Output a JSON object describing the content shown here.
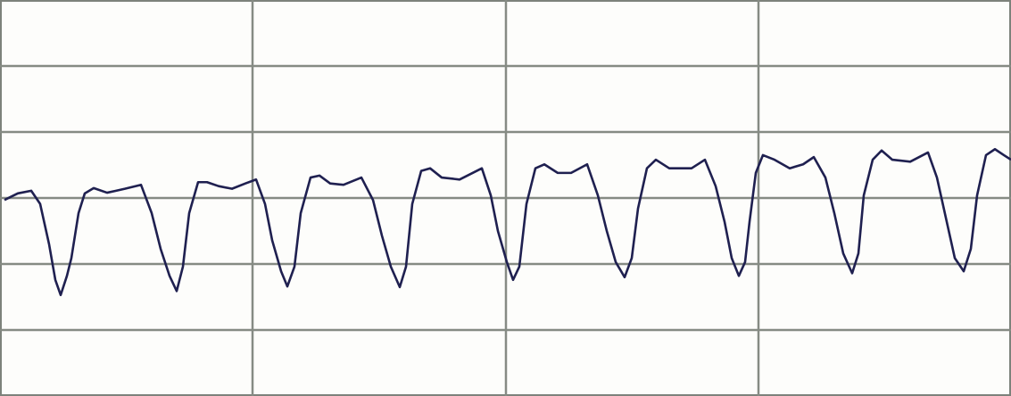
{
  "chart_data": {
    "type": "line",
    "x": [
      5,
      20,
      35,
      45,
      55,
      62,
      68,
      75,
      80,
      88,
      95,
      105,
      120,
      140,
      158,
      170,
      180,
      190,
      198,
      205,
      212,
      222,
      232,
      245,
      260,
      275,
      287,
      297,
      305,
      315,
      322,
      330,
      337,
      348,
      358,
      370,
      385,
      405,
      418,
      428,
      438,
      448,
      455,
      462,
      472,
      482,
      495,
      515,
      540,
      550,
      558,
      568,
      575,
      582,
      590,
      600,
      610,
      625,
      640,
      658,
      670,
      680,
      690,
      700,
      708,
      715,
      725,
      735,
      750,
      775,
      790,
      802,
      812,
      820,
      828,
      835,
      840,
      847,
      855,
      868,
      885,
      900,
      912,
      925,
      935,
      945,
      955,
      962,
      968,
      978,
      988,
      1000,
      1020,
      1040,
      1050,
      1060,
      1070,
      1080,
      1088,
      1095,
      1105,
      1115,
      1125,
      1133
    ],
    "series": [
      {
        "color": "#1f2050",
        "values": [
          2.97,
          3.07,
          3.11,
          2.91,
          2.3,
          1.76,
          1.53,
          1.82,
          2.09,
          2.77,
          3.07,
          3.15,
          3.08,
          3.14,
          3.2,
          2.77,
          2.23,
          1.82,
          1.59,
          1.96,
          2.77,
          3.24,
          3.24,
          3.18,
          3.14,
          3.22,
          3.28,
          2.91,
          2.36,
          1.89,
          1.66,
          1.96,
          2.77,
          3.31,
          3.34,
          3.22,
          3.2,
          3.31,
          2.97,
          2.43,
          1.96,
          1.65,
          1.96,
          2.91,
          3.41,
          3.45,
          3.31,
          3.28,
          3.45,
          3.04,
          2.5,
          2.03,
          1.76,
          1.96,
          2.91,
          3.45,
          3.51,
          3.38,
          3.38,
          3.51,
          3.04,
          2.5,
          2.03,
          1.8,
          2.09,
          2.84,
          3.45,
          3.58,
          3.45,
          3.45,
          3.58,
          3.18,
          2.64,
          2.09,
          1.82,
          2.03,
          2.64,
          3.38,
          3.65,
          3.58,
          3.45,
          3.51,
          3.62,
          3.31,
          2.77,
          2.16,
          1.86,
          2.16,
          3.04,
          3.58,
          3.72,
          3.58,
          3.55,
          3.69,
          3.31,
          2.7,
          2.09,
          1.89,
          2.23,
          3.04,
          3.65,
          3.74,
          3.65,
          3.58
        ]
      }
    ],
    "xlim": [
      0,
      1133
    ],
    "xticks": [
      283,
      567,
      850
    ],
    "ylim": [
      0,
      6
    ],
    "yticks": [
      1,
      2,
      3,
      4,
      5
    ],
    "grid": true
  }
}
